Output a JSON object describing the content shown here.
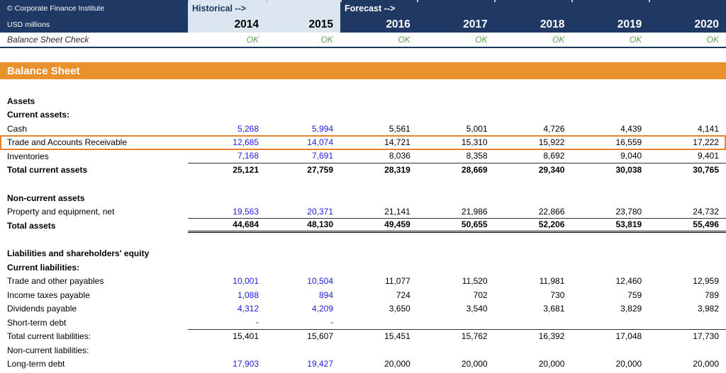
{
  "header": {
    "company": "© Corporate Finance Institute",
    "units": "USD millions",
    "historical_label": "Historical -->",
    "forecast_label": "Forecast -->",
    "years": [
      "2014",
      "2015",
      "2016",
      "2017",
      "2018",
      "2019",
      "2020"
    ],
    "check_label": "Balance Sheet Check",
    "check_values": [
      "OK",
      "OK",
      "OK",
      "OK",
      "OK",
      "OK",
      "OK"
    ]
  },
  "title": "Balance Sheet",
  "colors": {
    "navy": "#1F3864",
    "light_blue": "#DCE6F1",
    "orange": "#E8912D",
    "input_blue": "#2020E0",
    "check_green": "#5FA053",
    "highlight_border": "#E8832B"
  },
  "table": {
    "rows": [
      {
        "label": "Assets",
        "type": "section"
      },
      {
        "label": "Current assets:",
        "type": "section"
      },
      {
        "label": "Cash",
        "type": "item",
        "hist_blue": true,
        "values": [
          "5,268",
          "5,994",
          "5,561",
          "5,001",
          "4,726",
          "4,439",
          "4,141"
        ]
      },
      {
        "label": "Trade and Accounts Receivable",
        "type": "item",
        "hist_blue": true,
        "highlight": true,
        "values": [
          "12,685",
          "14,074",
          "14,721",
          "15,310",
          "15,922",
          "16,559",
          "17,222"
        ]
      },
      {
        "label": "Inventories",
        "type": "item",
        "hist_blue": true,
        "underline": true,
        "values": [
          "7,168",
          "7,691",
          "8,036",
          "8,358",
          "8,692",
          "9,040",
          "9,401"
        ]
      },
      {
        "label": "Total current assets",
        "type": "total",
        "values": [
          "25,121",
          "27,759",
          "28,319",
          "28,669",
          "29,340",
          "30,038",
          "30,765"
        ]
      },
      {
        "type": "spacer"
      },
      {
        "label": "Non-current assets",
        "type": "section"
      },
      {
        "label": "Property and equipment, net",
        "type": "item",
        "hist_blue": true,
        "underline": true,
        "values": [
          "19,563",
          "20,371",
          "21,141",
          "21,986",
          "22,866",
          "23,780",
          "24,732"
        ]
      },
      {
        "label": "Total assets",
        "type": "total",
        "double_underline": true,
        "values": [
          "44,684",
          "48,130",
          "49,459",
          "50,655",
          "52,206",
          "53,819",
          "55,496"
        ]
      },
      {
        "type": "spacer"
      },
      {
        "label": "Liabilities and shareholders' equity",
        "type": "section"
      },
      {
        "label": "Current liabilities:",
        "type": "section"
      },
      {
        "label": "Trade and other payables",
        "type": "item",
        "hist_blue": true,
        "values": [
          "10,001",
          "10,504",
          "11,077",
          "11,520",
          "11,981",
          "12,460",
          "12,959"
        ]
      },
      {
        "label": "Income taxes payable",
        "type": "item",
        "hist_blue": true,
        "values": [
          "1,088",
          "894",
          "724",
          "702",
          "730",
          "759",
          "789"
        ]
      },
      {
        "label": "Dividends payable",
        "type": "item",
        "hist_blue": true,
        "values": [
          "4,312",
          "4,209",
          "3,650",
          "3,540",
          "3,681",
          "3,829",
          "3,982"
        ]
      },
      {
        "label": "Short-term debt",
        "type": "item",
        "hist_blue": true,
        "underline": true,
        "values": [
          "-",
          "-",
          "",
          "",
          "",
          "",
          ""
        ]
      },
      {
        "label": "Total current liabilities:",
        "type": "item",
        "values": [
          "15,401",
          "15,607",
          "15,451",
          "15,762",
          "16,392",
          "17,048",
          "17,730"
        ]
      },
      {
        "label": "Non-current liabilities:",
        "type": "item",
        "values": [
          "",
          "",
          "",
          "",
          "",
          "",
          ""
        ]
      },
      {
        "label": "Long-term debt",
        "type": "item",
        "hist_blue": true,
        "values": [
          "17,903",
          "19,427",
          "20,000",
          "20,000",
          "20,000",
          "20,000",
          "20,000"
        ]
      }
    ]
  }
}
